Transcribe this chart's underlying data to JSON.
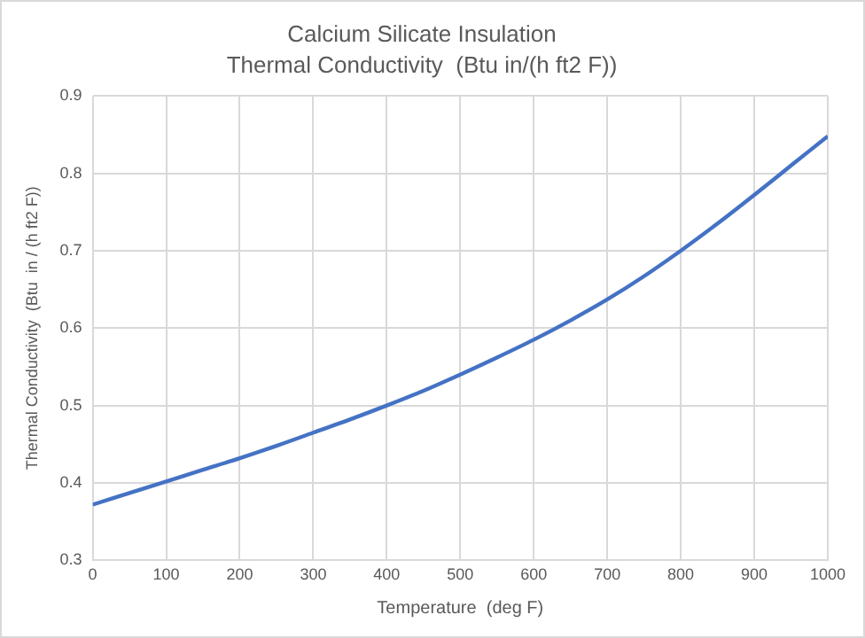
{
  "chart_data": {
    "type": "line",
    "title": [
      "Calcium Silicate Insulation",
      "Thermal Conductivity  (Btu in/(h ft2 F))"
    ],
    "xlabel": "Temperature  (deg F)",
    "ylabel": "Thermal Conductivity  (Btu  in / (h ft2 F))",
    "x": [
      0,
      50,
      100,
      150,
      200,
      250,
      300,
      350,
      400,
      450,
      500,
      550,
      600,
      650,
      700,
      750,
      800,
      850,
      900,
      950,
      1000
    ],
    "series": [
      {
        "color": "#4472c4",
        "values": [
          0.372,
          0.387,
          0.402,
          0.417,
          0.432,
          0.448,
          0.465,
          0.482,
          0.5,
          0.519,
          0.54,
          0.562,
          0.585,
          0.61,
          0.637,
          0.667,
          0.7,
          0.735,
          0.772,
          0.81,
          0.848
        ]
      }
    ],
    "xlim": [
      0,
      1000
    ],
    "xticks": [
      0,
      100,
      200,
      300,
      400,
      500,
      600,
      700,
      800,
      900,
      1000
    ],
    "ylim": [
      0.3,
      0.9
    ],
    "yticks": [
      0.3,
      0.4,
      0.5,
      0.6,
      0.7,
      0.8,
      0.9
    ],
    "grid": true,
    "legend": false,
    "marker": "none",
    "line_style": "solid"
  }
}
